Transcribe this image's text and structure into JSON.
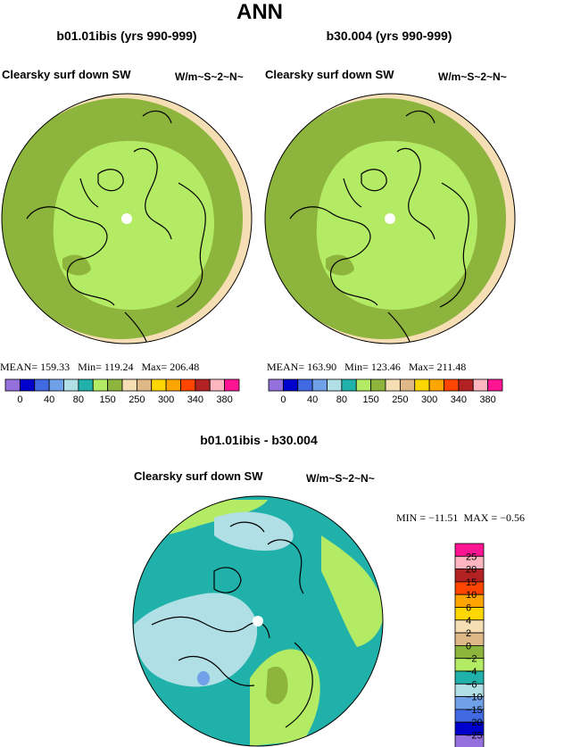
{
  "page": {
    "title": "ANN"
  },
  "panels": [
    {
      "case_title": "b01.01ibis (yrs 990-999)",
      "variable": "Clearsky surf down SW",
      "units": "W/m~S~2~N~",
      "stats": {
        "mean_label": "MEAN=",
        "mean": "159.33",
        "min_label": "Min=",
        "min": "119.24",
        "max_label": "Max=",
        "max": "206.48"
      }
    },
    {
      "case_title": "b30.004 (yrs 990-999)",
      "variable": "Clearsky surf down SW",
      "units": "W/m~S~2~N~",
      "stats": {
        "mean_label": "MEAN=",
        "mean": "163.90",
        "min_label": "Min=",
        "min": "123.46",
        "max_label": "Max=",
        "max": "211.48"
      }
    },
    {
      "case_title": "b01.01ibis - b30.004",
      "variable": "Clearsky surf down SW",
      "units": "W/m~S~2~N~",
      "stats": {
        "min_label": "MIN =",
        "min": "−11.51",
        "max_label": "MAX =",
        "max": "−0.56"
      }
    }
  ],
  "chart_data": [
    {
      "type": "heatmap",
      "title": "b01.01ibis (yrs 990-999)",
      "projection": "north polar stereographic",
      "levels": [
        "0",
        "40",
        "80",
        "150",
        "250",
        "300",
        "340",
        "380"
      ],
      "colors": [
        "#9370db",
        "#0000cd",
        "#4169e1",
        "#6fa0e8",
        "#b0e0e6",
        "#20b2aa",
        "#b4eb64",
        "#8db43c",
        "#f5deb3",
        "#deb887",
        "#ffd700",
        "#ffa500",
        "#ff4500",
        "#b22222",
        "#ffb6c1",
        "#ff1493"
      ],
      "zones": [
        {
          "region": "central Arctic",
          "color": "#b4eb64"
        },
        {
          "region": "subarctic ring",
          "color": "#8db43c"
        },
        {
          "region": "outer edge",
          "color": "#f5deb3"
        }
      ],
      "stats": {
        "mean": 159.33,
        "min": 119.24,
        "max": 206.48
      }
    },
    {
      "type": "heatmap",
      "title": "b30.004 (yrs 990-999)",
      "projection": "north polar stereographic",
      "levels": [
        "0",
        "40",
        "80",
        "150",
        "250",
        "300",
        "340",
        "380"
      ],
      "colors": [
        "#9370db",
        "#0000cd",
        "#4169e1",
        "#6fa0e8",
        "#b0e0e6",
        "#20b2aa",
        "#b4eb64",
        "#8db43c",
        "#f5deb3",
        "#deb887",
        "#ffd700",
        "#ffa500",
        "#ff4500",
        "#b22222",
        "#ffb6c1",
        "#ff1493"
      ],
      "zones": [
        {
          "region": "central Arctic",
          "color": "#b4eb64"
        },
        {
          "region": "subarctic ring",
          "color": "#8db43c"
        },
        {
          "region": "outer edge",
          "color": "#f5deb3"
        }
      ],
      "stats": {
        "mean": 163.9,
        "min": 123.46,
        "max": 211.48
      }
    },
    {
      "type": "heatmap",
      "title": "b01.01ibis - b30.004",
      "projection": "north polar stereographic",
      "levels": [
        "25",
        "20",
        "15",
        "10",
        "6",
        "4",
        "2",
        "0",
        "−2",
        "−4",
        "−6",
        "−10",
        "−15",
        "−20",
        "−25"
      ],
      "colors": [
        "#ff1493",
        "#ffb6c1",
        "#b22222",
        "#ff4500",
        "#ffa500",
        "#ffd700",
        "#f5deb3",
        "#deb887",
        "#8db43c",
        "#b4eb64",
        "#20b2aa",
        "#b0e0e6",
        "#6fa0e8",
        "#4169e1",
        "#0000cd",
        "#9370db"
      ],
      "zones": [
        {
          "region": "most of domain",
          "color": "#20b2aa"
        },
        {
          "region": "Canadian Arctic / Greenland",
          "color": "#b0e0e6"
        },
        {
          "region": "Siberia / Scandinavia",
          "color": "#b4eb64"
        },
        {
          "region": "Hudson Bay spot",
          "color": "#6fa0e8"
        }
      ],
      "stats": {
        "min": -11.51,
        "max": -0.56
      }
    }
  ]
}
